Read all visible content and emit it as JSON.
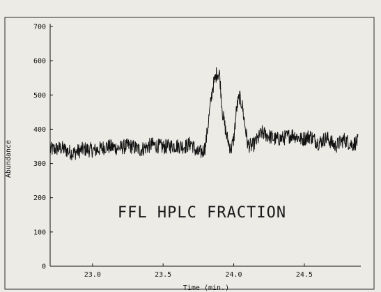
{
  "chart_data": {
    "type": "line",
    "title": "",
    "xlabel": "Time (min.)",
    "ylabel": "Abundance",
    "xlim": [
      22.7,
      24.9
    ],
    "ylim": [
      0,
      700
    ],
    "xticks": [
      23.0,
      23.5,
      24.0,
      24.5
    ],
    "xtick_labels": [
      "23.0",
      "23.5",
      "24.0",
      "24.5"
    ],
    "yticks": [
      0,
      100,
      200,
      300,
      400,
      500,
      600,
      700
    ],
    "ytick_labels": [
      "0",
      "100",
      "200",
      "300",
      "400",
      "500",
      "600",
      "700"
    ],
    "annotation": "FFL HPLC FRACTION",
    "grid": false,
    "series": [
      {
        "color": "#111111",
        "x": [
          22.7,
          22.78,
          22.86,
          22.94,
          23.02,
          23.1,
          23.18,
          23.26,
          23.34,
          23.42,
          23.5,
          23.58,
          23.66,
          23.7,
          23.74,
          23.78,
          23.8,
          23.82,
          23.85,
          23.88,
          23.9,
          23.92,
          23.95,
          23.98,
          24.0,
          24.02,
          24.04,
          24.06,
          24.08,
          24.1,
          24.13,
          24.16,
          24.2,
          24.25,
          24.3,
          24.36,
          24.42,
          24.48,
          24.54,
          24.6,
          24.66,
          24.72,
          24.78,
          24.84,
          24.88
        ],
        "y": [
          340,
          345,
          330,
          342,
          338,
          350,
          345,
          352,
          340,
          355,
          348,
          352,
          350,
          360,
          330,
          335,
          350,
          420,
          520,
          565,
          560,
          450,
          380,
          340,
          370,
          460,
          495,
          470,
          410,
          355,
          350,
          365,
          390,
          380,
          370,
          375,
          385,
          370,
          380,
          360,
          375,
          350,
          370,
          355,
          365
        ]
      }
    ]
  }
}
